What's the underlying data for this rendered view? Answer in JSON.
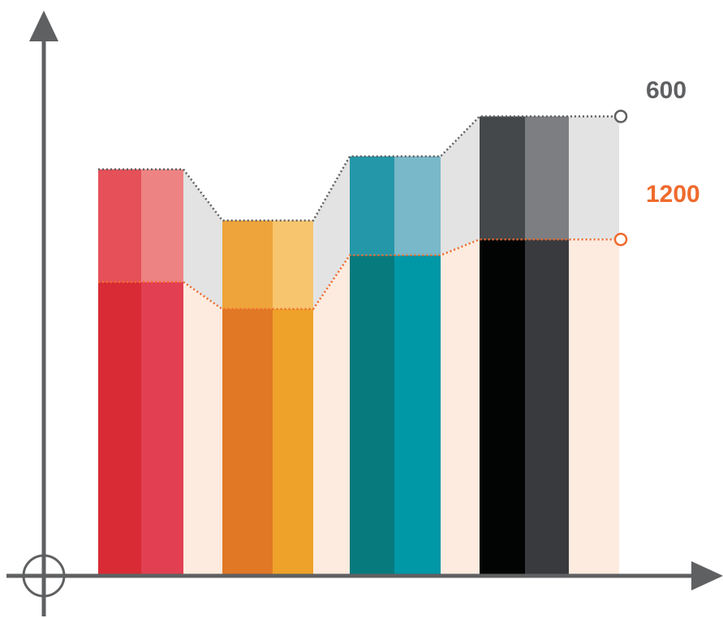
{
  "chart_data": {
    "type": "bar",
    "title": "",
    "xlabel": "",
    "ylabel": "",
    "grid": false,
    "categories": [
      "",
      "",
      "",
      ""
    ],
    "series": [
      {
        "name": "1200",
        "values": [
          1022,
          928,
          1115,
          1170
        ]
      },
      {
        "name": "600",
        "values": [
          1414,
          1236,
          1459,
          1598
        ]
      }
    ],
    "end_labels": {
      "upper": "600",
      "lower": "1200"
    },
    "ylim": [
      0,
      1800
    ],
    "colors": {
      "upper_line": "#5f6062",
      "lower_line": "#ef6a2d",
      "gap_band": "#e3e3e3",
      "lower_band": "#fdebdf",
      "axis": "#5f6062",
      "bars": [
        {
          "base_left": "#d92b35",
          "base_right": "#e23f52",
          "top_left": "#e55059",
          "top_right": "#ee8383"
        },
        {
          "base_left": "#e07826",
          "base_right": "#eea22a",
          "top_left": "#eea43a",
          "top_right": "#f7c56d"
        },
        {
          "base_left": "#067a7d",
          "base_right": "#0097a6",
          "top_left": "#2497a8",
          "top_right": "#79b8c9"
        },
        {
          "base_left": "#020303",
          "base_right": "#383a3e",
          "top_left": "#45484a",
          "top_right": "#7d7e81"
        }
      ]
    }
  }
}
